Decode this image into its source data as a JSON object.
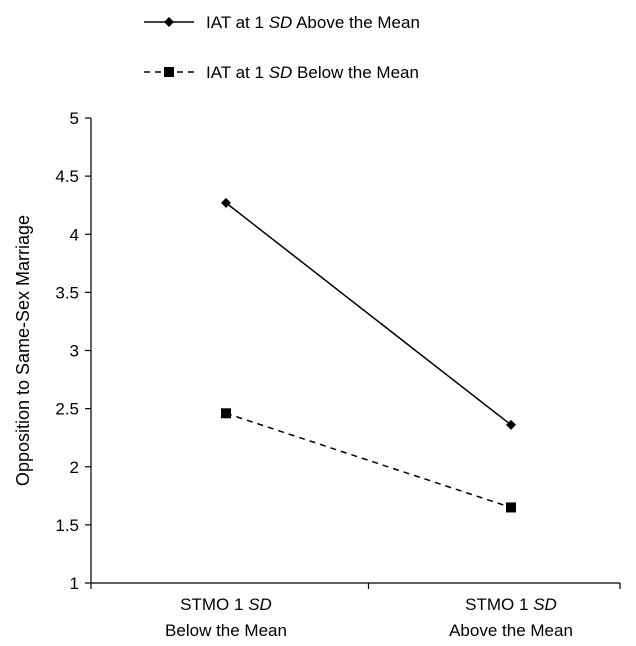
{
  "chart_data": {
    "type": "line",
    "title": "",
    "xlabel": "",
    "ylabel": "Opposition to Same-Sex Marriage",
    "ylim": [
      1,
      5
    ],
    "yticks": [
      "1",
      "1.5",
      "2",
      "2.5",
      "3",
      "3.5",
      "4",
      "4.5",
      "5"
    ],
    "grid": false,
    "legend_position": "top-left",
    "categories": [
      {
        "line1_prefix": "STMO 1 ",
        "line1_italic": "SD",
        "line2": "Below the Mean"
      },
      {
        "line1_prefix": "STMO 1 ",
        "line1_italic": "SD",
        "line2": "Above the Mean"
      }
    ],
    "series": [
      {
        "name_prefix": "IAT at 1 ",
        "name_italic": "SD",
        "name_suffix": " Above the Mean",
        "values": [
          4.27,
          2.36
        ],
        "line_style": "solid",
        "marker": "diamond",
        "color": "#000000"
      },
      {
        "name_prefix": "IAT at 1 ",
        "name_italic": "SD",
        "name_suffix": " Below the Mean",
        "values": [
          2.46,
          1.65
        ],
        "line_style": "dashed",
        "marker": "square",
        "color": "#000000"
      }
    ]
  }
}
